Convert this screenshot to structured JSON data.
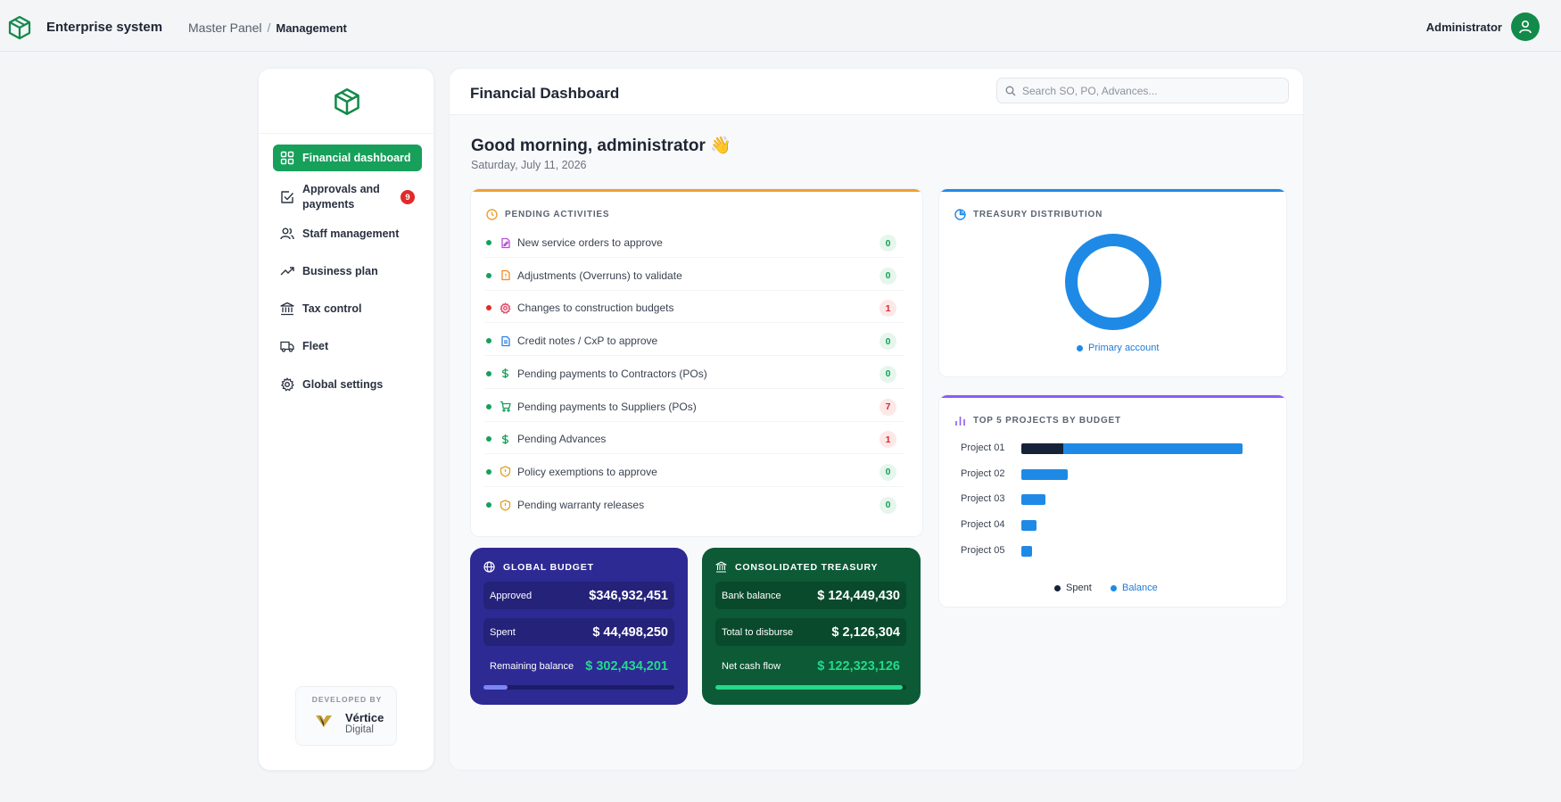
{
  "topbar": {
    "app_name": "Enterprise system",
    "breadcrumb": [
      "Master Panel",
      "Management"
    ],
    "user_name": "Administrator"
  },
  "sidebar": {
    "items": [
      {
        "label": "Financial dashboard",
        "icon": "grid-icon",
        "active": true
      },
      {
        "label": "Approvals and payments",
        "icon": "check-square-icon",
        "badge": "9"
      },
      {
        "label": "Staff management",
        "icon": "users-icon"
      },
      {
        "label": "Business plan",
        "icon": "trend-up-icon"
      },
      {
        "label": "Tax control",
        "icon": "bank-icon"
      },
      {
        "label": "Fleet",
        "icon": "truck-icon"
      },
      {
        "label": "Global settings",
        "icon": "gear-icon"
      }
    ],
    "developed_by_label": "DEVELOPED BY",
    "developer_name": "Vértice",
    "developer_sub": "Digital"
  },
  "main": {
    "title": "Financial Dashboard",
    "search_placeholder": "Search SO, PO, Advances...",
    "greeting": "Good morning, administrator 👋",
    "date": "Saturday, July 11, 2026"
  },
  "pending": {
    "title": "PENDING ACTIVITIES",
    "accent": "#f0a030",
    "items": [
      {
        "label": "New service orders to approve",
        "count": "0",
        "dot": "#16a05a",
        "icon_color": "#b44fd6",
        "icon": "file-edit-icon"
      },
      {
        "label": "Adjustments (Overruns) to validate",
        "count": "0",
        "dot": "#16a05a",
        "icon_color": "#f08a24",
        "icon": "file-alert-icon"
      },
      {
        "label": "Changes to construction budgets",
        "count": "1",
        "dot": "#e12a2a",
        "icon_color": "#e14a6a",
        "icon": "settings-cog-icon"
      },
      {
        "label": "Credit notes / CxP to approve",
        "count": "0",
        "dot": "#16a05a",
        "icon_color": "#2f7fe0",
        "icon": "document-icon"
      },
      {
        "label": "Pending payments to Contractors (POs)",
        "count": "0",
        "dot": "#16a05a",
        "icon_color": "#16a05a",
        "icon": "dollar-icon"
      },
      {
        "label": "Pending payments to Suppliers (POs)",
        "count": "7",
        "dot": "#16a05a",
        "icon_color": "#16a05a",
        "icon": "cart-icon"
      },
      {
        "label": "Pending Advances",
        "count": "1",
        "dot": "#16a05a",
        "icon_color": "#16a05a",
        "icon": "dollar-icon"
      },
      {
        "label": "Policy exemptions to approve",
        "count": "0",
        "dot": "#16a05a",
        "icon_color": "#e0a020",
        "icon": "shield-icon"
      },
      {
        "label": "Pending warranty releases",
        "count": "0",
        "dot": "#16a05a",
        "icon_color": "#e0a020",
        "icon": "shield-icon"
      }
    ]
  },
  "treasury_dist": {
    "title": "TREASURY DISTRIBUTION",
    "accent": "#1f8ae6",
    "legend": "Primary account",
    "share": 1.0
  },
  "global_budget": {
    "title": "GLOBAL BUDGET",
    "bg": "#2d2a94",
    "rows": [
      {
        "label": "Approved",
        "value": "$346,932,451"
      },
      {
        "label": "Spent",
        "value": "$ 44,498,250"
      },
      {
        "label": "Remaining balance",
        "value": "$ 302,434,201"
      }
    ],
    "progress": 0.128
  },
  "consolidated": {
    "title": "CONSOLIDATED TREASURY",
    "bg": "#0c5a36",
    "rows": [
      {
        "label": "Bank balance",
        "value": "$ 124,449,430"
      },
      {
        "label": "Total to disburse",
        "value": "$ 2,126,304"
      },
      {
        "label": "Net cash flow",
        "value": "$ 122,323,126"
      }
    ],
    "progress": 0.983
  },
  "top_projects": {
    "title": "TOP 5 PROJECTS BY BUDGET",
    "accent": "#8b5cf6",
    "chart_data": {
      "type": "bar",
      "orientation": "horizontal",
      "stacked": true,
      "categories": [
        "Project 01",
        "Project 02",
        "Project 03",
        "Project 04",
        "Project 05"
      ],
      "series": [
        {
          "name": "Spent",
          "color": "#162238",
          "values": [
            19,
            0,
            0,
            0,
            0
          ]
        },
        {
          "name": "Balance",
          "color": "#1f8ae6",
          "values": [
            81,
            21,
            11,
            7,
            5
          ]
        }
      ],
      "max": 100
    },
    "legend": [
      "Spent",
      "Balance"
    ]
  }
}
